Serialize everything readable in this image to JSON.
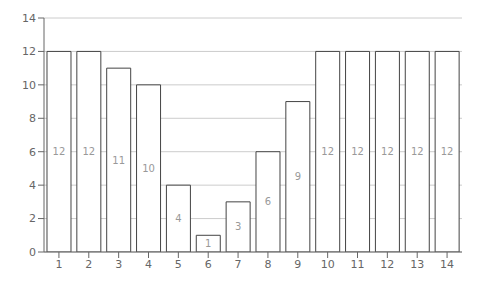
{
  "chart_data": {
    "type": "bar",
    "categories": [
      1,
      2,
      3,
      4,
      5,
      6,
      7,
      8,
      9,
      10,
      11,
      12,
      13,
      14
    ],
    "values": [
      12,
      12,
      11,
      10,
      4,
      1,
      3,
      6,
      9,
      12,
      12,
      12,
      12,
      12
    ],
    "color": "#ffffff",
    "ylim": [
      0,
      14
    ],
    "yticks": [
      0,
      2,
      4,
      6,
      8,
      10,
      12,
      14
    ],
    "grid": true,
    "data_labels": true
  }
}
